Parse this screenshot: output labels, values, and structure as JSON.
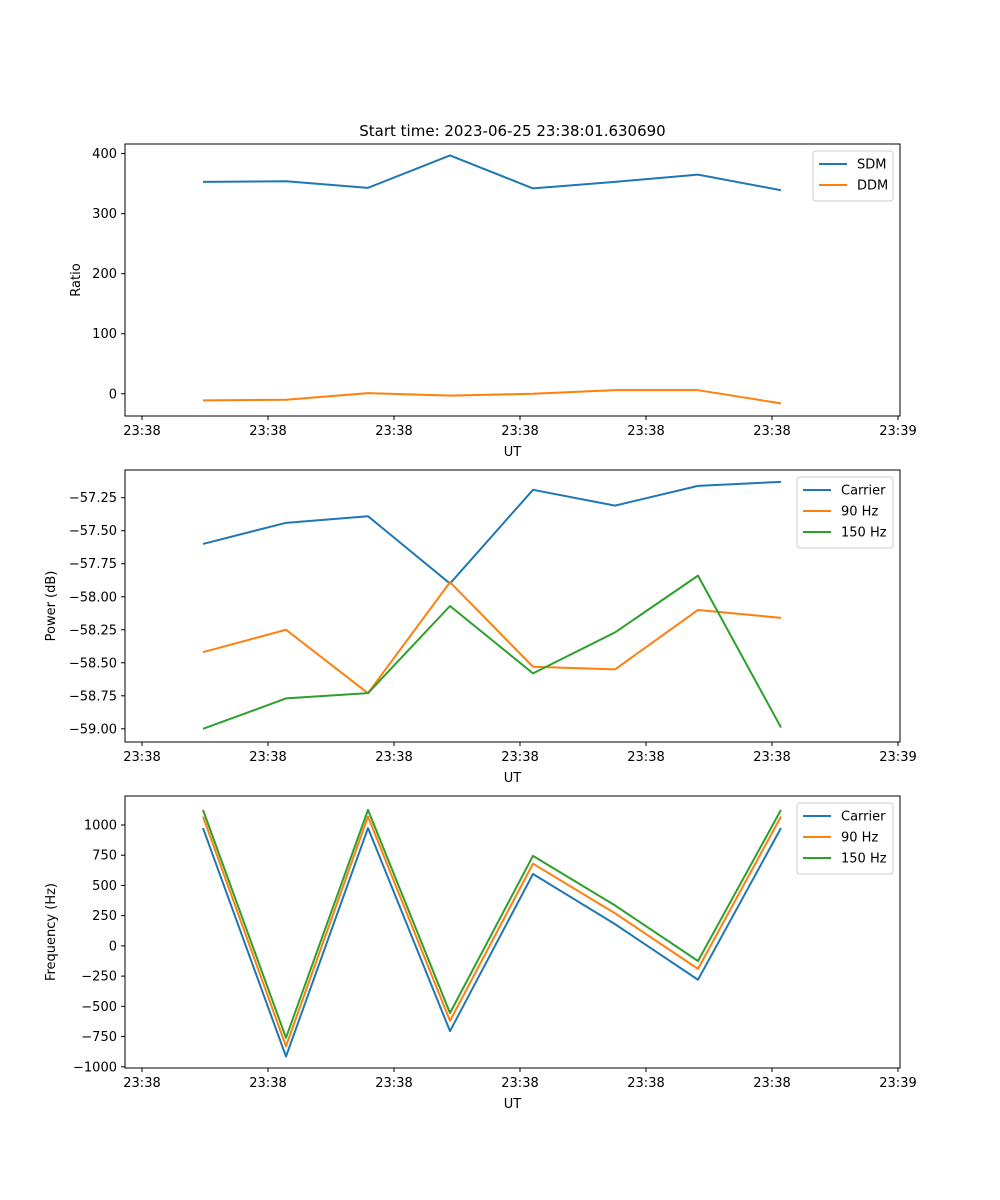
{
  "figure": {
    "title": "Start time: 2023-06-25 23:38:01.630690"
  },
  "chart_data": [
    {
      "type": "line",
      "xlabel": "UT",
      "ylabel": "Ratio",
      "x_ticks": [
        "23:38",
        "23:38",
        "23:38",
        "23:38",
        "23:38",
        "23:38",
        "23:39"
      ],
      "yticks": [
        0,
        100,
        200,
        300,
        400
      ],
      "ytick_labels": [
        "0",
        "100",
        "200",
        "300",
        "400"
      ],
      "ylim": [
        -37,
        416
      ],
      "grid": false,
      "legend_position": "top-right",
      "series": [
        {
          "name": "SDM",
          "color": "#1f77b4",
          "values": [
            353,
            354,
            343,
            397,
            342,
            353,
            365,
            339
          ]
        },
        {
          "name": "DDM",
          "color": "#ff7f0e",
          "values": [
            -11,
            -10,
            1,
            -3,
            0,
            6,
            6,
            -16
          ]
        }
      ]
    },
    {
      "type": "line",
      "xlabel": "UT",
      "ylabel": "Power (dB)",
      "x_ticks": [
        "23:38",
        "23:38",
        "23:38",
        "23:38",
        "23:38",
        "23:38",
        "23:39"
      ],
      "yticks": [
        -59.0,
        -58.75,
        -58.5,
        -58.25,
        -58.0,
        -57.75,
        -57.5,
        -57.25
      ],
      "ytick_labels": [
        "−59.00",
        "−58.75",
        "−58.50",
        "−58.25",
        "−58.00",
        "−57.75",
        "−57.50",
        "−57.25"
      ],
      "ylim": [
        -59.1,
        -57.04
      ],
      "grid": false,
      "legend_position": "top-right",
      "series": [
        {
          "name": "Carrier",
          "color": "#1f77b4",
          "values": [
            -57.6,
            -57.44,
            -57.39,
            -57.9,
            -57.19,
            -57.31,
            -57.16,
            -57.13
          ]
        },
        {
          "name": "90 Hz",
          "color": "#ff7f0e",
          "values": [
            -58.42,
            -58.25,
            -58.73,
            -57.89,
            -58.53,
            -58.55,
            -58.1,
            -58.16
          ]
        },
        {
          "name": "150 Hz",
          "color": "#2ca02c",
          "values": [
            -59.0,
            -58.77,
            -58.73,
            -58.07,
            -58.58,
            -58.27,
            -57.84,
            -58.99
          ]
        }
      ]
    },
    {
      "type": "line",
      "xlabel": "UT",
      "ylabel": "Frequency (Hz)",
      "x_ticks": [
        "23:38",
        "23:38",
        "23:38",
        "23:38",
        "23:38",
        "23:38",
        "23:39"
      ],
      "yticks": [
        -1000,
        -750,
        -500,
        -250,
        0,
        250,
        500,
        750,
        1000
      ],
      "ytick_labels": [
        "−1000",
        "−750",
        "−500",
        "−250",
        "0",
        "250",
        "500",
        "750",
        "1000"
      ],
      "ylim": [
        -1010,
        1240
      ],
      "grid": false,
      "legend_position": "top-right",
      "series": [
        {
          "name": "Carrier",
          "color": "#1f77b4",
          "values": [
            975,
            -915,
            975,
            -705,
            595,
            180,
            -280,
            975
          ]
        },
        {
          "name": "90 Hz",
          "color": "#ff7f0e",
          "values": [
            1070,
            -830,
            1070,
            -620,
            680,
            270,
            -190,
            1070
          ]
        },
        {
          "name": "150 Hz",
          "color": "#2ca02c",
          "values": [
            1125,
            -760,
            1125,
            -555,
            745,
            335,
            -125,
            1125
          ]
        }
      ]
    }
  ]
}
